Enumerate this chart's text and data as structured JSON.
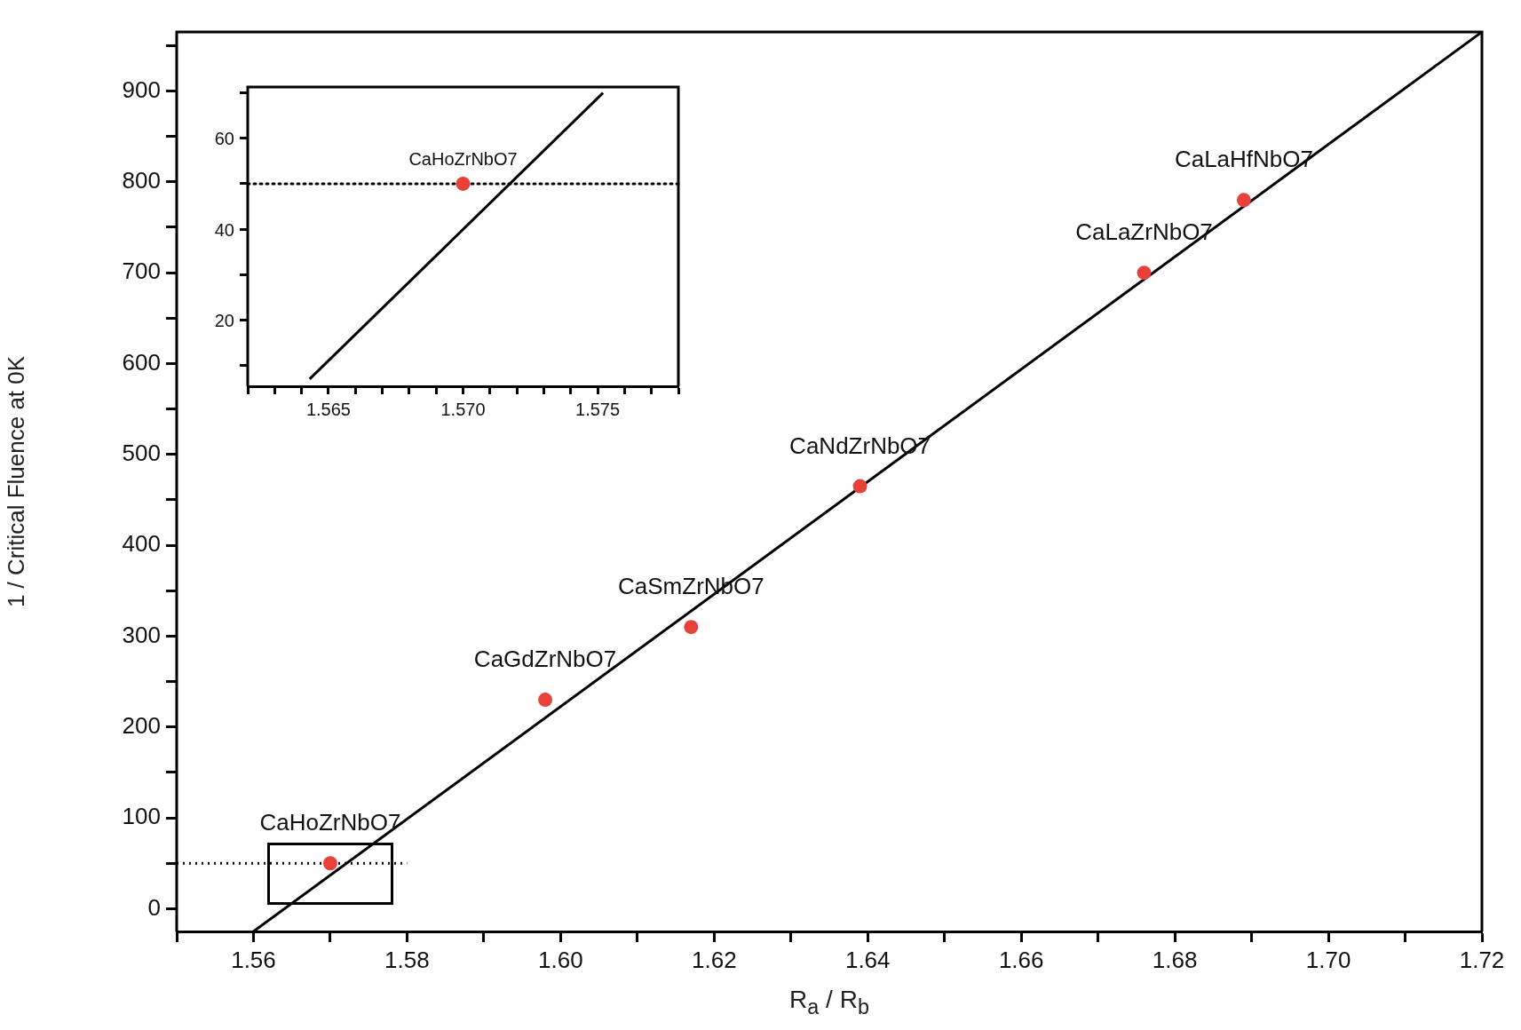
{
  "chart_data": [
    {
      "type": "scatter",
      "xlabel": "R$_{a}$ / R$_{b}$",
      "ylabel": "1 / Critical Fluence at 0K",
      "xlim": [
        1.55,
        1.72
      ],
      "ylim": [
        -25,
        965
      ],
      "xticks": [
        {
          "value": 1.55,
          "label": null
        },
        {
          "value": 1.56,
          "label": "1.56"
        },
        {
          "value": 1.57,
          "label": null
        },
        {
          "value": 1.58,
          "label": "1.58"
        },
        {
          "value": 1.59,
          "label": null
        },
        {
          "value": 1.6,
          "label": "1.60"
        },
        {
          "value": 1.61,
          "label": null
        },
        {
          "value": 1.62,
          "label": "1.62"
        },
        {
          "value": 1.63,
          "label": null
        },
        {
          "value": 1.64,
          "label": "1.64"
        },
        {
          "value": 1.65,
          "label": null
        },
        {
          "value": 1.66,
          "label": "1.66"
        },
        {
          "value": 1.67,
          "label": null
        },
        {
          "value": 1.68,
          "label": "1.68"
        },
        {
          "value": 1.69,
          "label": null
        },
        {
          "value": 1.7,
          "label": "1.70"
        },
        {
          "value": 1.71,
          "label": null
        },
        {
          "value": 1.72,
          "label": "1.72"
        }
      ],
      "yticks": [
        0,
        {
          "value": 50,
          "label": null
        },
        100,
        {
          "value": 150,
          "label": null
        },
        200,
        {
          "value": 250,
          "label": null
        },
        300,
        {
          "value": 350,
          "label": null
        },
        400,
        {
          "value": 450,
          "label": null
        },
        500,
        {
          "value": 550,
          "label": null
        },
        600,
        {
          "value": 650,
          "label": null
        },
        700,
        {
          "value": 750,
          "label": null
        },
        800,
        {
          "value": 850,
          "label": null
        },
        900,
        {
          "value": 950,
          "label": null
        }
      ],
      "grid": false,
      "legend": false,
      "series": [
        {
          "color": "#e8413a",
          "marker": "circle",
          "x": [
            1.57,
            1.598,
            1.617,
            1.639,
            1.676,
            1.689
          ],
          "values": [
            50,
            230,
            310,
            465,
            700,
            780
          ]
        },
        {
          "type": "line",
          "color": "#000000",
          "marker": "none",
          "x": [
            1.56,
            1.72
          ],
          "values": [
            -25,
            965
          ]
        },
        {
          "type": "line",
          "color": "#000000",
          "marker": "none",
          "line_style": "dotted",
          "x": [
            1.55,
            1.58
          ],
          "values": [
            50,
            50
          ]
        }
      ],
      "annotations": [
        {
          "text": "CaHoZrNbO7",
          "x": 1.57,
          "y": 50
        },
        {
          "text": "CaGdZrNbO7",
          "x": 1.598,
          "y": 230
        },
        {
          "text": "CaSmZrNbO7",
          "x": 1.617,
          "y": 310
        },
        {
          "text": "CaNdZrNbO7",
          "x": 1.639,
          "y": 465
        },
        {
          "text": "CaLaZrNbO7",
          "x": 1.676,
          "y": 700
        },
        {
          "text": "CaLaHfNbO7",
          "x": 1.689,
          "y": 780
        }
      ]
    },
    {
      "type": "scatter",
      "xlim": [
        1.562,
        1.578
      ],
      "ylim": [
        5.4,
        71.3
      ],
      "xticks": [
        {
          "value": 1.562,
          "label": null
        },
        {
          "value": 1.563,
          "label": null
        },
        {
          "value": 1.564,
          "label": null
        },
        {
          "value": 1.565,
          "label": "1.565"
        },
        {
          "value": 1.566,
          "label": null
        },
        {
          "value": 1.567,
          "label": null
        },
        {
          "value": 1.568,
          "label": null
        },
        {
          "value": 1.569,
          "label": null
        },
        {
          "value": 1.57,
          "label": "1.570"
        },
        {
          "value": 1.571,
          "label": null
        },
        {
          "value": 1.572,
          "label": null
        },
        {
          "value": 1.573,
          "label": null
        },
        {
          "value": 1.574,
          "label": null
        },
        {
          "value": 1.575,
          "label": "1.575"
        },
        {
          "value": 1.576,
          "label": null
        },
        {
          "value": 1.577,
          "label": null
        },
        {
          "value": 1.578,
          "label": null
        }
      ],
      "yticks": [
        {
          "value": 10,
          "label": null
        },
        20,
        {
          "value": 30,
          "label": null
        },
        40,
        {
          "value": 50,
          "label": null
        },
        60,
        {
          "value": 70,
          "label": null
        }
      ],
      "grid": false,
      "legend": false,
      "series": [
        {
          "color": "#e8413a",
          "marker": "circle",
          "x": [
            1.57
          ],
          "values": [
            50
          ]
        },
        {
          "type": "line",
          "color": "#000000",
          "marker": "none",
          "x": [
            1.5643,
            1.5752
          ],
          "values": [
            7,
            70
          ]
        }
      ],
      "ref_lines": [
        {
          "axis": "y",
          "value": 50,
          "label": null,
          "color": "#000000",
          "line_style": "dotted"
        }
      ],
      "annotations": [
        {
          "text": "CaHoZrNbO7",
          "x": 1.57,
          "y": 50
        }
      ]
    }
  ]
}
